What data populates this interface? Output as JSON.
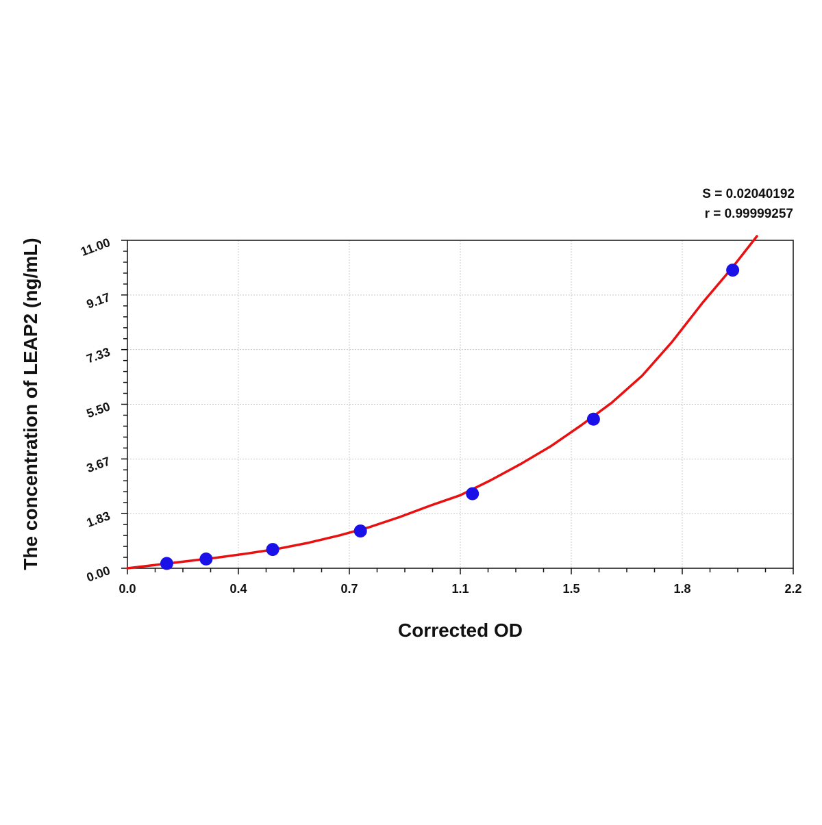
{
  "chart_data": {
    "type": "scatter",
    "title": "",
    "xlabel": "Corrected OD",
    "ylabel": "The concentration of LEAP2 (ng/mL)",
    "xlim": [
      0,
      2.2
    ],
    "ylim": [
      0,
      11
    ],
    "x_tick_labels": [
      "0.0",
      "0.4",
      "0.7",
      "1.1",
      "1.5",
      "1.8",
      "2.2"
    ],
    "y_tick_labels": [
      "0.00",
      "1.83",
      "3.67",
      "5.50",
      "7.33",
      "9.17",
      "11.00"
    ],
    "grid": true,
    "stats": {
      "s_label": "S = 0.02040192",
      "r_label": "r = 0.99999257"
    },
    "series": [
      {
        "kind": "points",
        "color": "#1a10e8",
        "x": [
          0.13,
          0.26,
          0.48,
          0.77,
          1.14,
          1.54,
          2.0
        ],
        "y": [
          0.16,
          0.31,
          0.63,
          1.25,
          2.5,
          5.0,
          10.0
        ]
      },
      {
        "kind": "fit-curve",
        "color": "#e81010",
        "x": [
          0.0,
          0.1,
          0.2,
          0.3,
          0.4,
          0.5,
          0.6,
          0.7,
          0.8,
          0.9,
          1.0,
          1.1,
          1.2,
          1.3,
          1.4,
          1.5,
          1.6,
          1.7,
          1.8,
          1.9,
          2.0,
          2.08
        ],
        "y": [
          0.0,
          0.12,
          0.24,
          0.36,
          0.5,
          0.66,
          0.86,
          1.1,
          1.38,
          1.72,
          2.1,
          2.45,
          2.95,
          3.5,
          4.1,
          4.8,
          5.55,
          6.45,
          7.6,
          8.9,
          10.1,
          11.2
        ]
      }
    ]
  }
}
